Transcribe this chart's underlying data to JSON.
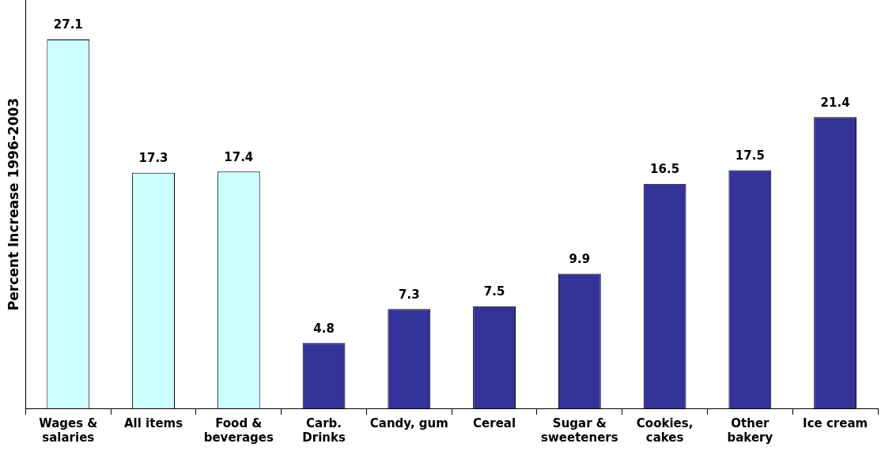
{
  "chart_data": {
    "type": "bar",
    "ylabel": "Percent Increase 1996-2003",
    "categories": [
      "Wages & salaries",
      "All items",
      "Food & beverages",
      "Carb. Drinks",
      "Candy, gum",
      "Cereal",
      "Sugar & sweeteners",
      "Cookies, cakes",
      "Other bakery",
      "Ice cream"
    ],
    "values": [
      27.1,
      17.3,
      17.4,
      4.8,
      7.3,
      7.5,
      9.9,
      16.5,
      17.5,
      21.4
    ],
    "colors": [
      "#ccffff",
      "#ccffff",
      "#ccffff",
      "#333399",
      "#333399",
      "#333399",
      "#333399",
      "#333399",
      "#333399",
      "#333399"
    ],
    "ylim": [
      0,
      30
    ],
    "tick_labels": "x",
    "grid": false,
    "legend": false,
    "data_labels": true
  }
}
